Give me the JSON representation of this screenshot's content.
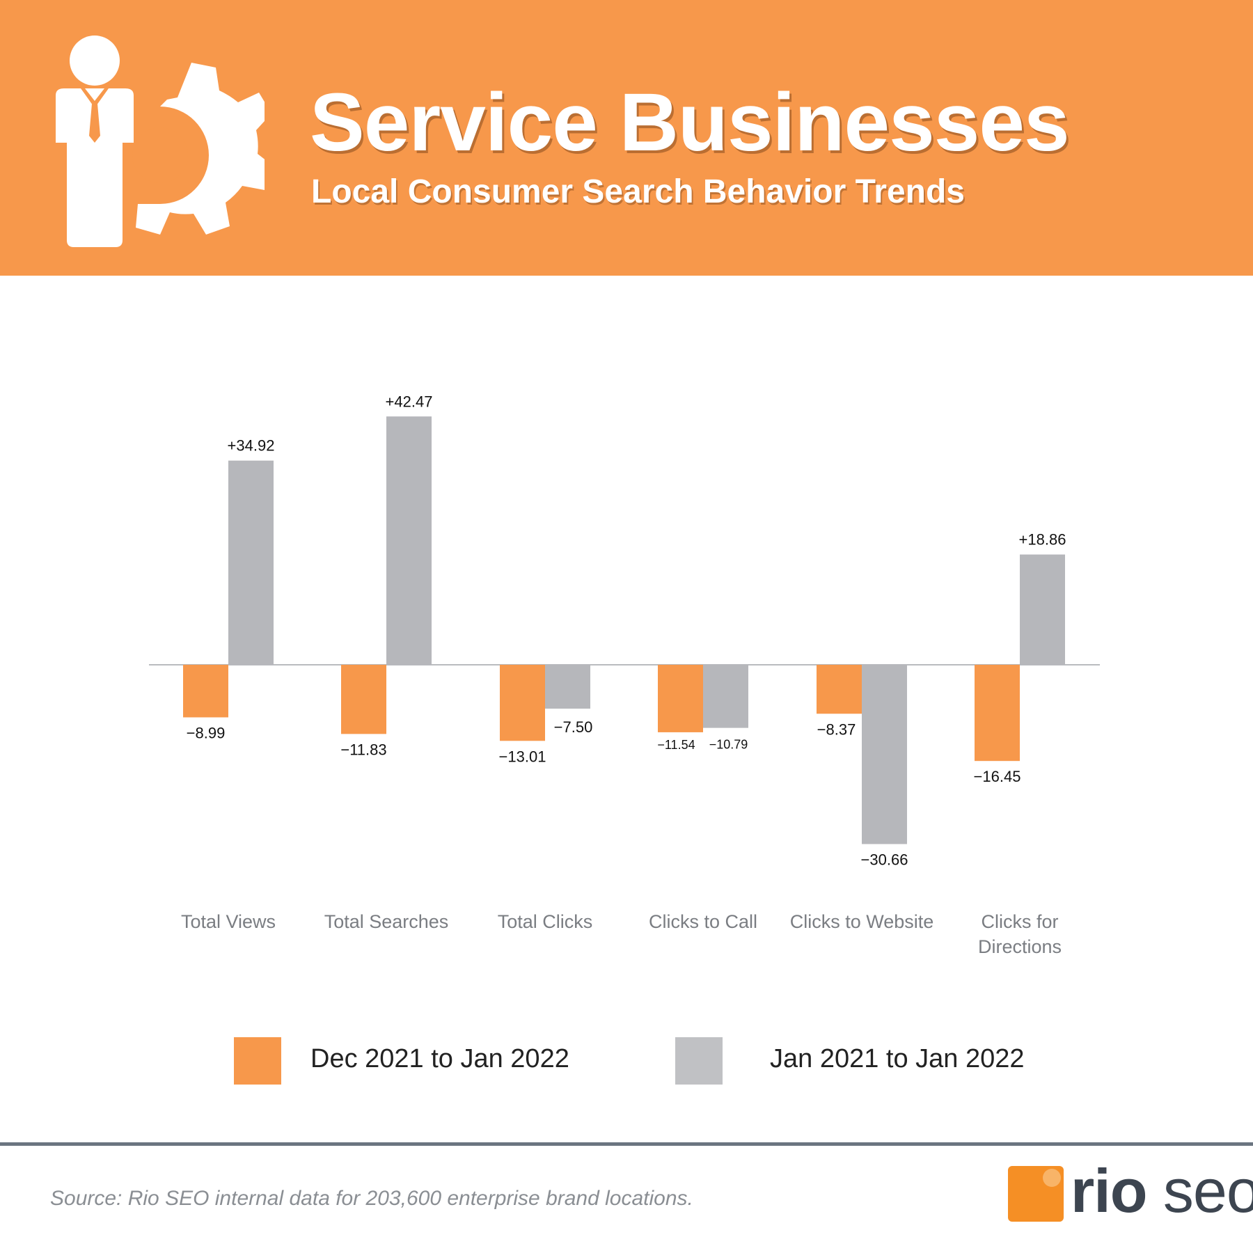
{
  "header": {
    "title": "Service Businesses",
    "subtitle": "Local Consumer Search Behavior Trends",
    "icon": "businessperson-gear-icon",
    "background_color": "#f7984b"
  },
  "chart_data": {
    "type": "bar",
    "title": "Service Businesses",
    "subtitle": "Local Consumer Search Behavior Trends",
    "categories": [
      [
        "Total Views"
      ],
      [
        "Total Searches"
      ],
      [
        "Total Clicks"
      ],
      [
        "Clicks to Call"
      ],
      [
        "Clicks to Website"
      ],
      [
        "Clicks for",
        "Directions"
      ]
    ],
    "series": [
      {
        "name": "Dec 2021 to Jan 2022",
        "color": "#f7984b",
        "values": [
          -8.99,
          -11.83,
          -13.01,
          -11.54,
          -8.37,
          -16.45
        ],
        "labels": [
          "−8.99",
          "−11.83",
          "−13.01",
          "−11.54",
          "−8.37",
          "−16.45"
        ]
      },
      {
        "name": "Jan 2021 to Jan 2022",
        "color": "#b6b7bb",
        "values": [
          34.92,
          42.47,
          -7.5,
          -10.79,
          -30.66,
          18.86
        ],
        "labels": [
          "+34.92",
          "+42.47",
          "−7.50",
          "−10.79",
          "−30.66",
          "+18.86"
        ]
      }
    ],
    "ylim": [
      -36,
      48
    ],
    "xlabel": "",
    "ylabel": "",
    "grid": false,
    "legend_position": "bottom"
  },
  "legend": {
    "items": [
      {
        "label": "Dec 2021 to Jan 2022",
        "color": "#f7984b"
      },
      {
        "label": "Jan 2021 to Jan 2022",
        "color": "#c0c1c4"
      }
    ]
  },
  "footer": {
    "source": "Source: Rio SEO internal data for 203,600 enterprise brand locations.",
    "logo_text_1": "rio",
    "logo_text_2": "seo",
    "logo_color": "#f58f25"
  }
}
